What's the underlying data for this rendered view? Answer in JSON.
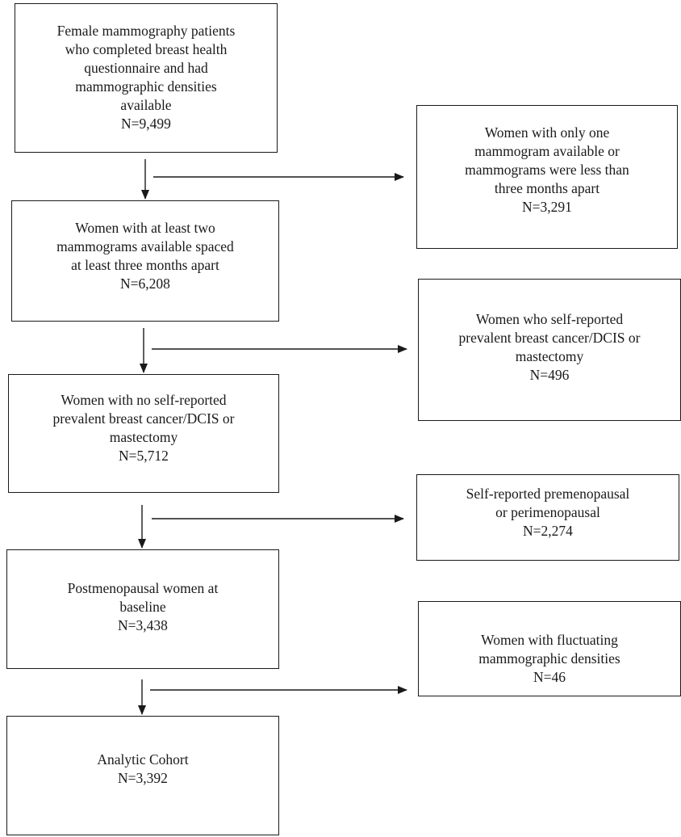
{
  "main_boxes": [
    {
      "id": "m1",
      "text": [
        "Female mammography patients",
        "who completed breast health",
        "questionnaire and had",
        "mammographic densities",
        "available"
      ],
      "n": "N=9,499"
    },
    {
      "id": "m2",
      "text": [
        "Women with at least two",
        "mammograms available spaced",
        "at least three months apart"
      ],
      "n": "N=6,208"
    },
    {
      "id": "m3",
      "text": [
        "Women with no self-reported",
        "prevalent breast cancer/DCIS or",
        "mastectomy"
      ],
      "n": "N=5,712"
    },
    {
      "id": "m4",
      "text": [
        "Postmenopausal women at",
        "baseline"
      ],
      "n": "N=3,438"
    },
    {
      "id": "m5",
      "text": [
        "Analytic Cohort"
      ],
      "n": "N=3,392"
    }
  ],
  "exclusion_boxes": [
    {
      "id": "e1",
      "text": [
        "Women with only one",
        "mammogram available or",
        "mammograms were less than",
        "three months apart"
      ],
      "n": "N=3,291"
    },
    {
      "id": "e2",
      "text": [
        "Women who self-reported",
        "prevalent breast cancer/DCIS or",
        "mastectomy"
      ],
      "n": "N=496"
    },
    {
      "id": "e3",
      "text": [
        "Self-reported premenopausal",
        "or perimenopausal"
      ],
      "n": "N=2,274"
    },
    {
      "id": "e4",
      "text": [
        "Women with fluctuating",
        "mammographic densities"
      ],
      "n": "N=46"
    }
  ]
}
